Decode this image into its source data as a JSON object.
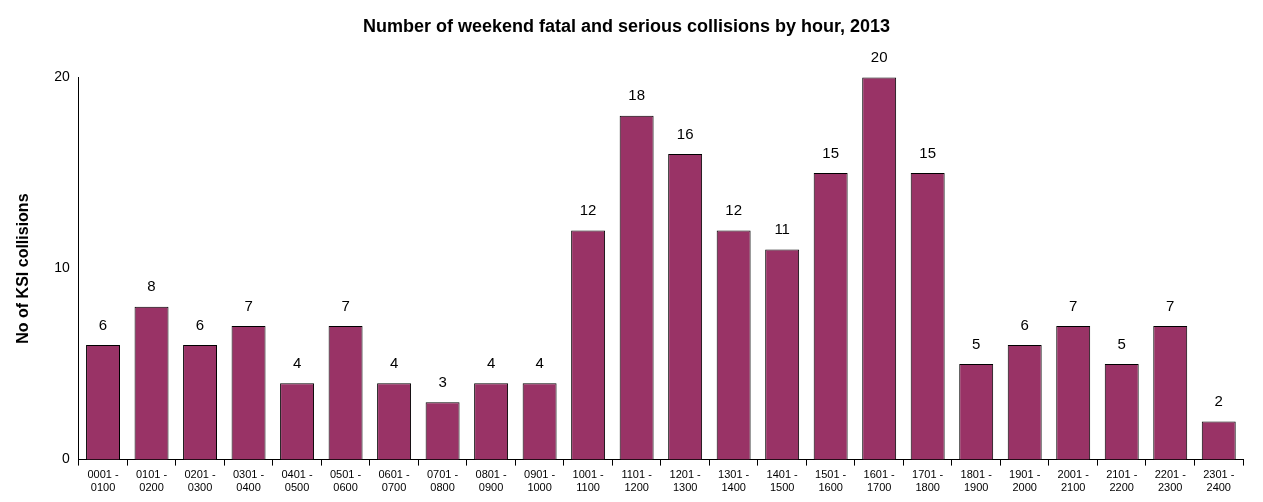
{
  "chart_data": {
    "type": "bar",
    "title": "Number of weekend fatal and serious collisions by hour, 2013",
    "ylabel": "No of KSI collisions",
    "categories": [
      "0001 - 0100",
      "0101 - 0200",
      "0201 - 0300",
      "0301 - 0400",
      "0401 - 0500",
      "0501 - 0600",
      "0601 - 0700",
      "0701 - 0800",
      "0801 - 0900",
      "0901 - 1000",
      "1001 - 1100",
      "1101 - 1200",
      "1201 - 1300",
      "1301 - 1400",
      "1401 - 1500",
      "1501 - 1600",
      "1601 - 1700",
      "1701 - 1800",
      "1801 - 1900",
      "1901 - 2000",
      "2001 - 2100",
      "2101 - 2200",
      "2201 - 2300",
      "2301 - 2400"
    ],
    "values": [
      6,
      8,
      6,
      7,
      4,
      7,
      4,
      3,
      4,
      4,
      12,
      18,
      16,
      12,
      11,
      15,
      20,
      15,
      5,
      6,
      7,
      5,
      7,
      2
    ],
    "color": "#993366",
    "ylim": [
      0,
      20
    ],
    "yticks": [
      0,
      10,
      20
    ],
    "grid": false,
    "legend": false,
    "data_labels": true
  }
}
